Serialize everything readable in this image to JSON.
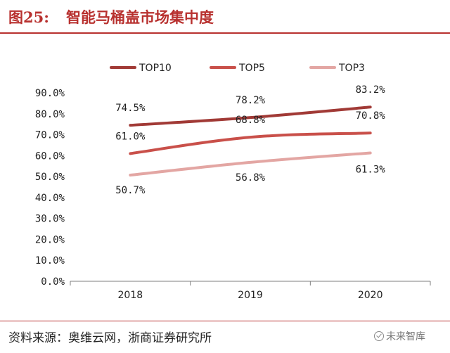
{
  "header": {
    "figure_number": "图25:",
    "title": "智能马桶盖市场集中度"
  },
  "footer": {
    "source": "资料来源：奥维云网，浙商证券研究所",
    "watermark": "未来智库"
  },
  "colors": {
    "accent": "#b8312f",
    "top10": "#a13a36",
    "top5": "#c9504a",
    "top3": "#e3a6a3"
  },
  "chart_data": {
    "type": "line",
    "title": "",
    "xlabel": "",
    "ylabel": "",
    "categories": [
      "2018",
      "2019",
      "2020"
    ],
    "ylim": [
      0,
      90
    ],
    "ytick_labels": [
      "0.0%",
      "10.0%",
      "20.0%",
      "30.0%",
      "40.0%",
      "50.0%",
      "60.0%",
      "70.0%",
      "80.0%",
      "90.0%"
    ],
    "grid": false,
    "legend_position": "top",
    "series": [
      {
        "name": "TOP10",
        "values": [
          74.5,
          78.2,
          83.2
        ],
        "labels": [
          "74.5%",
          "78.2%",
          "83.2%"
        ],
        "color": "#a13a36"
      },
      {
        "name": "TOP5",
        "values": [
          61.0,
          68.8,
          70.8
        ],
        "labels": [
          "61.0%",
          "68.8%",
          "70.8%"
        ],
        "color": "#c9504a"
      },
      {
        "name": "TOP3",
        "values": [
          50.7,
          56.8,
          61.3
        ],
        "labels": [
          "50.7%",
          "56.8%",
          "61.3%"
        ],
        "color": "#e3a6a3"
      }
    ]
  }
}
